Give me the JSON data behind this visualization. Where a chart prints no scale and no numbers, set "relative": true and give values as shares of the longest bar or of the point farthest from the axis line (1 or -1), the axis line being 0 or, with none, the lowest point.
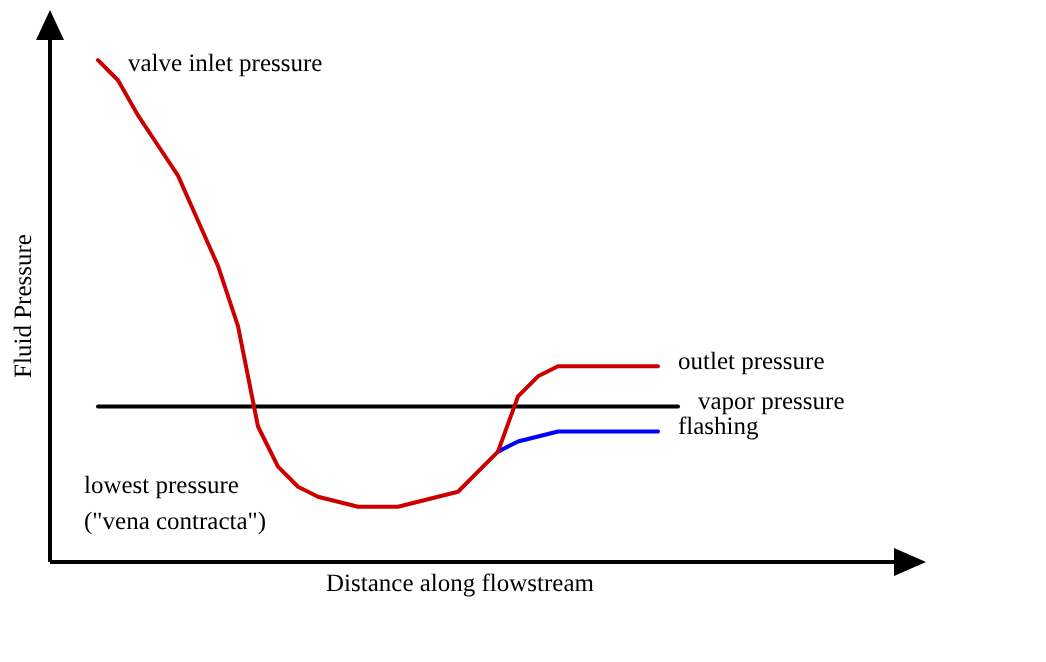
{
  "chart_data": {
    "type": "line",
    "relative": true,
    "xlabel": "Distance along flowstream",
    "ylabel": "Fluid Pressure",
    "categories": [
      null,
      null,
      null,
      null,
      null,
      null,
      null,
      null,
      null,
      null,
      null,
      null,
      null,
      null,
      null,
      null,
      null,
      null,
      null,
      null,
      null,
      null,
      null,
      null,
      null,
      null,
      null,
      null,
      null,
      null,
      null,
      null,
      null,
      null,
      null,
      null,
      null,
      null,
      null,
      null,
      null,
      null,
      null,
      null
    ],
    "series": [
      {
        "name": "outlet pressure",
        "color": "#cc0000",
        "values": [
          null,
          null,
          1.0,
          0.96,
          0.89,
          0.83,
          0.77,
          0.68,
          0.59,
          0.47,
          0.27,
          0.19,
          0.15,
          0.13,
          0.12,
          0.11,
          0.11,
          0.11,
          0.12,
          0.13,
          0.14,
          0.18,
          0.22,
          0.33,
          0.37,
          0.39,
          0.39,
          0.39,
          0.39,
          0.39,
          0.39,
          null,
          null,
          null,
          null,
          null,
          null,
          null,
          null,
          null,
          null,
          null,
          null,
          null
        ]
      },
      {
        "name": "vapor pressure",
        "color": "#000000",
        "values": [
          null,
          null,
          0.31,
          0.31,
          0.31,
          0.31,
          0.31,
          0.31,
          0.31,
          0.31,
          0.31,
          0.31,
          0.31,
          0.31,
          0.31,
          0.31,
          0.31,
          0.31,
          0.31,
          0.31,
          0.31,
          0.31,
          0.31,
          0.31,
          0.31,
          0.31,
          0.31,
          0.31,
          0.31,
          0.31,
          0.31,
          0.31,
          null,
          null,
          null,
          null,
          null,
          null,
          null,
          null,
          null,
          null,
          null,
          null
        ]
      },
      {
        "name": "flashing",
        "color": "#0000ff",
        "values": [
          null,
          null,
          null,
          null,
          null,
          null,
          null,
          null,
          null,
          null,
          null,
          null,
          null,
          null,
          null,
          null,
          null,
          null,
          null,
          null,
          null,
          null,
          0.22,
          0.24,
          0.25,
          0.26,
          0.26,
          0.26,
          0.26,
          0.26,
          0.26,
          null,
          null,
          null,
          null,
          null,
          null,
          null,
          null,
          null,
          null,
          null,
          null,
          null
        ]
      }
    ],
    "annotations": [
      "valve inlet pressure",
      "lowest pressure\n(\"vena contracta\")"
    ],
    "legend": false,
    "marker": "none",
    "line_style": "solid"
  }
}
